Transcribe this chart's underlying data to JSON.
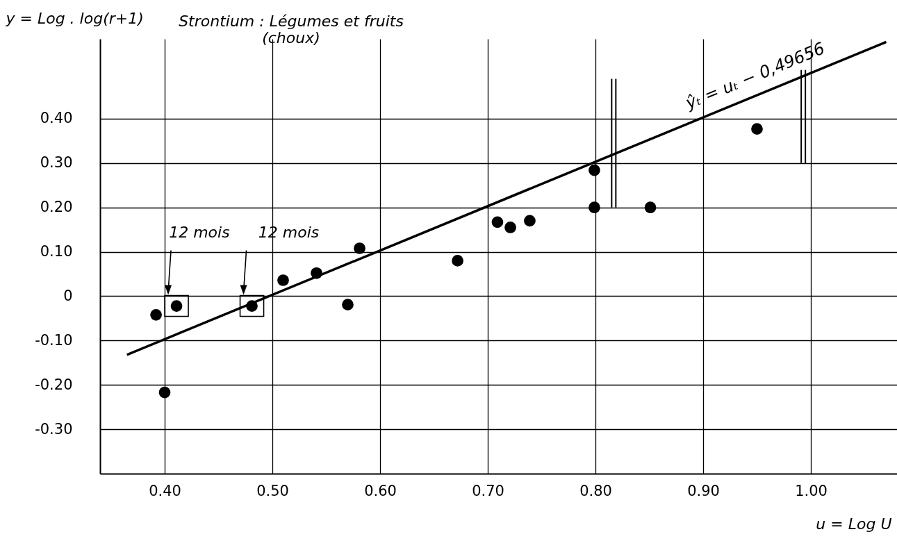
{
  "chart_data": {
    "type": "scatter",
    "title": "Strontium : Légumes et fruits",
    "subtitle": "(choux)",
    "xlabel": "u = Log U",
    "ylabel": "y = Log . log(r+1)",
    "xlim": [
      0.34,
      1.08
    ],
    "ylim": [
      -0.4,
      0.58
    ],
    "xticks": [
      {
        "value": 0.4,
        "label": "0.40"
      },
      {
        "value": 0.5,
        "label": "0.50"
      },
      {
        "value": 0.6,
        "label": "0.60"
      },
      {
        "value": 0.7,
        "label": "0.70"
      },
      {
        "value": 0.8,
        "label": "0.80"
      },
      {
        "value": 0.9,
        "label": "0.90"
      },
      {
        "value": 1.0,
        "label": "1.00"
      }
    ],
    "yticks": [
      {
        "value": -0.3,
        "label": "-0.30"
      },
      {
        "value": -0.2,
        "label": "-0.20"
      },
      {
        "value": -0.1,
        "label": "-0.10"
      },
      0,
      {
        "value": 0.1,
        "label": "0.10"
      },
      {
        "value": 0.2,
        "label": "0.20"
      },
      {
        "value": 0.3,
        "label": "0.30"
      },
      {
        "value": 0.4,
        "label": "0.40"
      }
    ],
    "grid": true,
    "marker": "circle",
    "series": [
      {
        "type": "scatter",
        "color": "#000000",
        "x": [
          0.392,
          0.411,
          0.4,
          0.481,
          0.51,
          0.541,
          0.57,
          0.581,
          0.672,
          0.709,
          0.721,
          0.739,
          0.799,
          0.799,
          0.851,
          0.95
        ],
        "values": [
          -0.042,
          -0.022,
          -0.217,
          -0.022,
          0.036,
          0.052,
          -0.019,
          0.108,
          0.08,
          0.167,
          0.155,
          0.17,
          0.284,
          0.2,
          0.2,
          0.377
        ]
      },
      {
        "type": "line",
        "color": "#000000",
        "marker": "none",
        "x": [
          0.365,
          1.07
        ],
        "values": [
          -0.132,
          0.573
        ]
      }
    ],
    "annotations": [
      "12 mois",
      "12 mois",
      {
        "text": "ŷₜ = uₜ − 0,49656",
        "x": 0.955,
        "y": 0.458
      }
    ]
  }
}
